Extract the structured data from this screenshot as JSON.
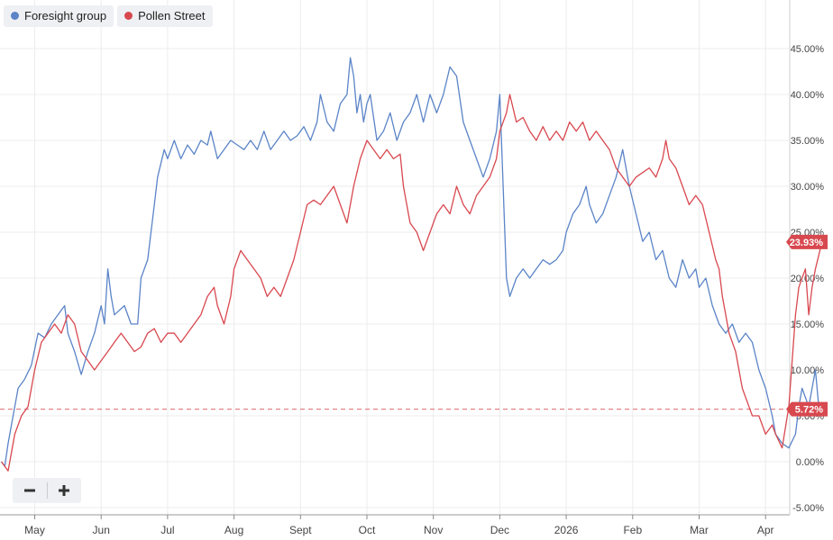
{
  "legend": [
    {
      "label": "Foresight group",
      "color": "#5b84c7"
    },
    {
      "label": "Pollen Street",
      "color": "#d8484f"
    }
  ],
  "colors": {
    "foresight": "#5b84c7",
    "pollen": "#d8484f",
    "reference_line": "#e3838a",
    "grid": "#ececec"
  },
  "zoom": {
    "out_icon": "minus-icon",
    "in_icon": "plus-icon"
  },
  "chart_data": {
    "type": "line",
    "title": "",
    "xlabel": "",
    "ylabel": "",
    "x_ticks": [
      "May",
      "Jun",
      "Jul",
      "Aug",
      "Sept",
      "Oct",
      "Nov",
      "Dec",
      "2026",
      "Feb",
      "Mar",
      "Apr"
    ],
    "y_ticks": [
      "45.00%",
      "40.00%",
      "35.00%",
      "30.00%",
      "25.00%",
      "20.00%",
      "15.00%",
      "10.00%",
      "5.00%",
      "0.00%",
      "-5.00%"
    ],
    "ylim": [
      -5,
      50
    ],
    "y_unit": "%",
    "grid": true,
    "legend_position": "top-left",
    "reference_line": {
      "value": 5.72,
      "style": "dashed"
    },
    "end_labels": [
      {
        "series": "Pollen Street",
        "text": "23.93%"
      },
      {
        "series": "Foresight group",
        "text": "5.72%"
      }
    ],
    "series": [
      {
        "name": "Foresight group",
        "color": "#5b84c7",
        "points": [
          [
            -0.5,
            0
          ],
          [
            -0.45,
            -0.5
          ],
          [
            -0.4,
            2
          ],
          [
            -0.3,
            6
          ],
          [
            -0.25,
            8
          ],
          [
            -0.15,
            9
          ],
          [
            -0.05,
            10.5
          ],
          [
            0.05,
            14
          ],
          [
            0.15,
            13.5
          ],
          [
            0.25,
            15
          ],
          [
            0.35,
            16
          ],
          [
            0.45,
            17
          ],
          [
            0.5,
            14
          ],
          [
            0.6,
            12
          ],
          [
            0.7,
            9.5
          ],
          [
            0.8,
            12
          ],
          [
            0.9,
            14
          ],
          [
            1.0,
            17
          ],
          [
            1.05,
            15
          ],
          [
            1.1,
            21
          ],
          [
            1.15,
            18
          ],
          [
            1.2,
            16
          ],
          [
            1.35,
            17
          ],
          [
            1.45,
            15
          ],
          [
            1.55,
            15
          ],
          [
            1.6,
            20
          ],
          [
            1.7,
            22
          ],
          [
            1.8,
            28
          ],
          [
            1.85,
            31
          ],
          [
            1.95,
            34
          ],
          [
            2.0,
            33
          ],
          [
            2.1,
            35
          ],
          [
            2.2,
            33
          ],
          [
            2.3,
            34.5
          ],
          [
            2.4,
            33.5
          ],
          [
            2.5,
            35
          ],
          [
            2.6,
            34.5
          ],
          [
            2.65,
            36
          ],
          [
            2.75,
            33
          ],
          [
            2.85,
            34
          ],
          [
            2.95,
            35
          ],
          [
            3.05,
            34.5
          ],
          [
            3.15,
            34
          ],
          [
            3.25,
            35
          ],
          [
            3.35,
            34
          ],
          [
            3.45,
            36
          ],
          [
            3.55,
            34
          ],
          [
            3.65,
            35
          ],
          [
            3.75,
            36
          ],
          [
            3.85,
            35
          ],
          [
            3.95,
            35.5
          ],
          [
            4.05,
            36.5
          ],
          [
            4.15,
            35
          ],
          [
            4.25,
            37
          ],
          [
            4.3,
            40
          ],
          [
            4.4,
            37
          ],
          [
            4.5,
            36
          ],
          [
            4.6,
            39
          ],
          [
            4.7,
            40
          ],
          [
            4.75,
            44
          ],
          [
            4.8,
            42
          ],
          [
            4.85,
            38
          ],
          [
            4.9,
            40
          ],
          [
            4.95,
            37
          ],
          [
            5.0,
            39
          ],
          [
            5.05,
            40
          ],
          [
            5.15,
            35
          ],
          [
            5.25,
            36
          ],
          [
            5.35,
            38
          ],
          [
            5.45,
            35
          ],
          [
            5.55,
            37
          ],
          [
            5.65,
            38
          ],
          [
            5.75,
            40
          ],
          [
            5.85,
            37
          ],
          [
            5.95,
            40
          ],
          [
            6.05,
            38
          ],
          [
            6.15,
            40
          ],
          [
            6.25,
            43
          ],
          [
            6.35,
            42
          ],
          [
            6.45,
            37
          ],
          [
            6.55,
            35
          ],
          [
            6.65,
            33
          ],
          [
            6.75,
            31
          ],
          [
            6.85,
            33
          ],
          [
            6.95,
            36
          ],
          [
            7.0,
            40
          ],
          [
            7.05,
            30
          ],
          [
            7.1,
            20
          ],
          [
            7.15,
            18
          ],
          [
            7.25,
            20
          ],
          [
            7.35,
            21
          ],
          [
            7.45,
            20
          ],
          [
            7.55,
            21
          ],
          [
            7.65,
            22
          ],
          [
            7.75,
            21.5
          ],
          [
            7.85,
            22
          ],
          [
            7.95,
            23
          ],
          [
            8.0,
            25
          ],
          [
            8.1,
            27
          ],
          [
            8.2,
            28
          ],
          [
            8.3,
            30
          ],
          [
            8.35,
            28
          ],
          [
            8.45,
            26
          ],
          [
            8.55,
            27
          ],
          [
            8.65,
            29
          ],
          [
            8.75,
            31
          ],
          [
            8.85,
            34
          ],
          [
            8.95,
            30
          ],
          [
            9.05,
            27
          ],
          [
            9.15,
            24
          ],
          [
            9.25,
            25
          ],
          [
            9.35,
            22
          ],
          [
            9.45,
            23
          ],
          [
            9.55,
            20
          ],
          [
            9.65,
            19
          ],
          [
            9.75,
            22
          ],
          [
            9.85,
            20
          ],
          [
            9.95,
            21
          ],
          [
            10.0,
            19
          ],
          [
            10.1,
            20
          ],
          [
            10.2,
            17
          ],
          [
            10.3,
            15
          ],
          [
            10.4,
            14
          ],
          [
            10.5,
            15
          ],
          [
            10.6,
            13
          ],
          [
            10.7,
            14
          ],
          [
            10.8,
            13
          ],
          [
            10.9,
            10
          ],
          [
            11.0,
            8
          ],
          [
            11.1,
            5
          ],
          [
            11.15,
            3
          ],
          [
            11.25,
            2
          ],
          [
            11.35,
            1.5
          ],
          [
            11.45,
            3
          ],
          [
            11.5,
            6
          ],
          [
            11.55,
            8
          ],
          [
            11.65,
            6
          ],
          [
            11.7,
            8
          ],
          [
            11.75,
            10
          ],
          [
            11.8,
            6
          ],
          [
            11.85,
            5.72
          ]
        ]
      },
      {
        "name": "Pollen Street",
        "color": "#d8484f",
        "points": [
          [
            -0.5,
            0
          ],
          [
            -0.4,
            -1
          ],
          [
            -0.3,
            3
          ],
          [
            -0.2,
            5
          ],
          [
            -0.1,
            6
          ],
          [
            0.0,
            10
          ],
          [
            0.1,
            13
          ],
          [
            0.2,
            14
          ],
          [
            0.3,
            15
          ],
          [
            0.4,
            14
          ],
          [
            0.5,
            16
          ],
          [
            0.6,
            15
          ],
          [
            0.7,
            12
          ],
          [
            0.8,
            11
          ],
          [
            0.9,
            10
          ],
          [
            1.0,
            11
          ],
          [
            1.1,
            12
          ],
          [
            1.2,
            13
          ],
          [
            1.3,
            14
          ],
          [
            1.4,
            13
          ],
          [
            1.5,
            12
          ],
          [
            1.6,
            12.5
          ],
          [
            1.7,
            14
          ],
          [
            1.8,
            14.5
          ],
          [
            1.9,
            13
          ],
          [
            2.0,
            14
          ],
          [
            2.1,
            14
          ],
          [
            2.2,
            13
          ],
          [
            2.3,
            14
          ],
          [
            2.4,
            15
          ],
          [
            2.5,
            16
          ],
          [
            2.6,
            18
          ],
          [
            2.7,
            19
          ],
          [
            2.75,
            17
          ],
          [
            2.85,
            15
          ],
          [
            2.95,
            18
          ],
          [
            3.0,
            21
          ],
          [
            3.1,
            23
          ],
          [
            3.2,
            22
          ],
          [
            3.3,
            21
          ],
          [
            3.4,
            20
          ],
          [
            3.5,
            18
          ],
          [
            3.6,
            19
          ],
          [
            3.7,
            18
          ],
          [
            3.8,
            20
          ],
          [
            3.9,
            22
          ],
          [
            4.0,
            25
          ],
          [
            4.1,
            28
          ],
          [
            4.2,
            28.5
          ],
          [
            4.3,
            28
          ],
          [
            4.4,
            29
          ],
          [
            4.5,
            30
          ],
          [
            4.6,
            28
          ],
          [
            4.7,
            26
          ],
          [
            4.8,
            30
          ],
          [
            4.9,
            33
          ],
          [
            5.0,
            35
          ],
          [
            5.1,
            34
          ],
          [
            5.2,
            33
          ],
          [
            5.3,
            34
          ],
          [
            5.4,
            33
          ],
          [
            5.5,
            33.5
          ],
          [
            5.55,
            30
          ],
          [
            5.65,
            26
          ],
          [
            5.75,
            25
          ],
          [
            5.85,
            23
          ],
          [
            5.95,
            25
          ],
          [
            6.05,
            27
          ],
          [
            6.15,
            28
          ],
          [
            6.25,
            27
          ],
          [
            6.35,
            30
          ],
          [
            6.45,
            28
          ],
          [
            6.55,
            27
          ],
          [
            6.65,
            29
          ],
          [
            6.75,
            30
          ],
          [
            6.85,
            31
          ],
          [
            6.95,
            33
          ],
          [
            7.0,
            36
          ],
          [
            7.1,
            38
          ],
          [
            7.15,
            40
          ],
          [
            7.25,
            37
          ],
          [
            7.35,
            37.5
          ],
          [
            7.45,
            36
          ],
          [
            7.55,
            35
          ],
          [
            7.65,
            36.5
          ],
          [
            7.75,
            35
          ],
          [
            7.85,
            36
          ],
          [
            7.95,
            35
          ],
          [
            8.05,
            37
          ],
          [
            8.15,
            36
          ],
          [
            8.25,
            37
          ],
          [
            8.35,
            35
          ],
          [
            8.45,
            36
          ],
          [
            8.55,
            35
          ],
          [
            8.65,
            34
          ],
          [
            8.75,
            32
          ],
          [
            8.85,
            31
          ],
          [
            8.95,
            30
          ],
          [
            9.05,
            31
          ],
          [
            9.15,
            31.5
          ],
          [
            9.25,
            32
          ],
          [
            9.35,
            31
          ],
          [
            9.45,
            33
          ],
          [
            9.5,
            35
          ],
          [
            9.55,
            33
          ],
          [
            9.65,
            32
          ],
          [
            9.75,
            30
          ],
          [
            9.85,
            28
          ],
          [
            9.95,
            29
          ],
          [
            10.05,
            28
          ],
          [
            10.15,
            25
          ],
          [
            10.25,
            22
          ],
          [
            10.3,
            21
          ],
          [
            10.35,
            18
          ],
          [
            10.45,
            14
          ],
          [
            10.55,
            12
          ],
          [
            10.65,
            8
          ],
          [
            10.75,
            6
          ],
          [
            10.8,
            5
          ],
          [
            10.9,
            5
          ],
          [
            11.0,
            3
          ],
          [
            11.1,
            4
          ],
          [
            11.15,
            3
          ],
          [
            11.25,
            1.5
          ],
          [
            11.35,
            6
          ],
          [
            11.45,
            16
          ],
          [
            11.5,
            19
          ],
          [
            11.55,
            20
          ],
          [
            11.6,
            21
          ],
          [
            11.65,
            16
          ],
          [
            11.7,
            19
          ],
          [
            11.75,
            21
          ],
          [
            11.85,
            23.93
          ]
        ]
      }
    ]
  }
}
